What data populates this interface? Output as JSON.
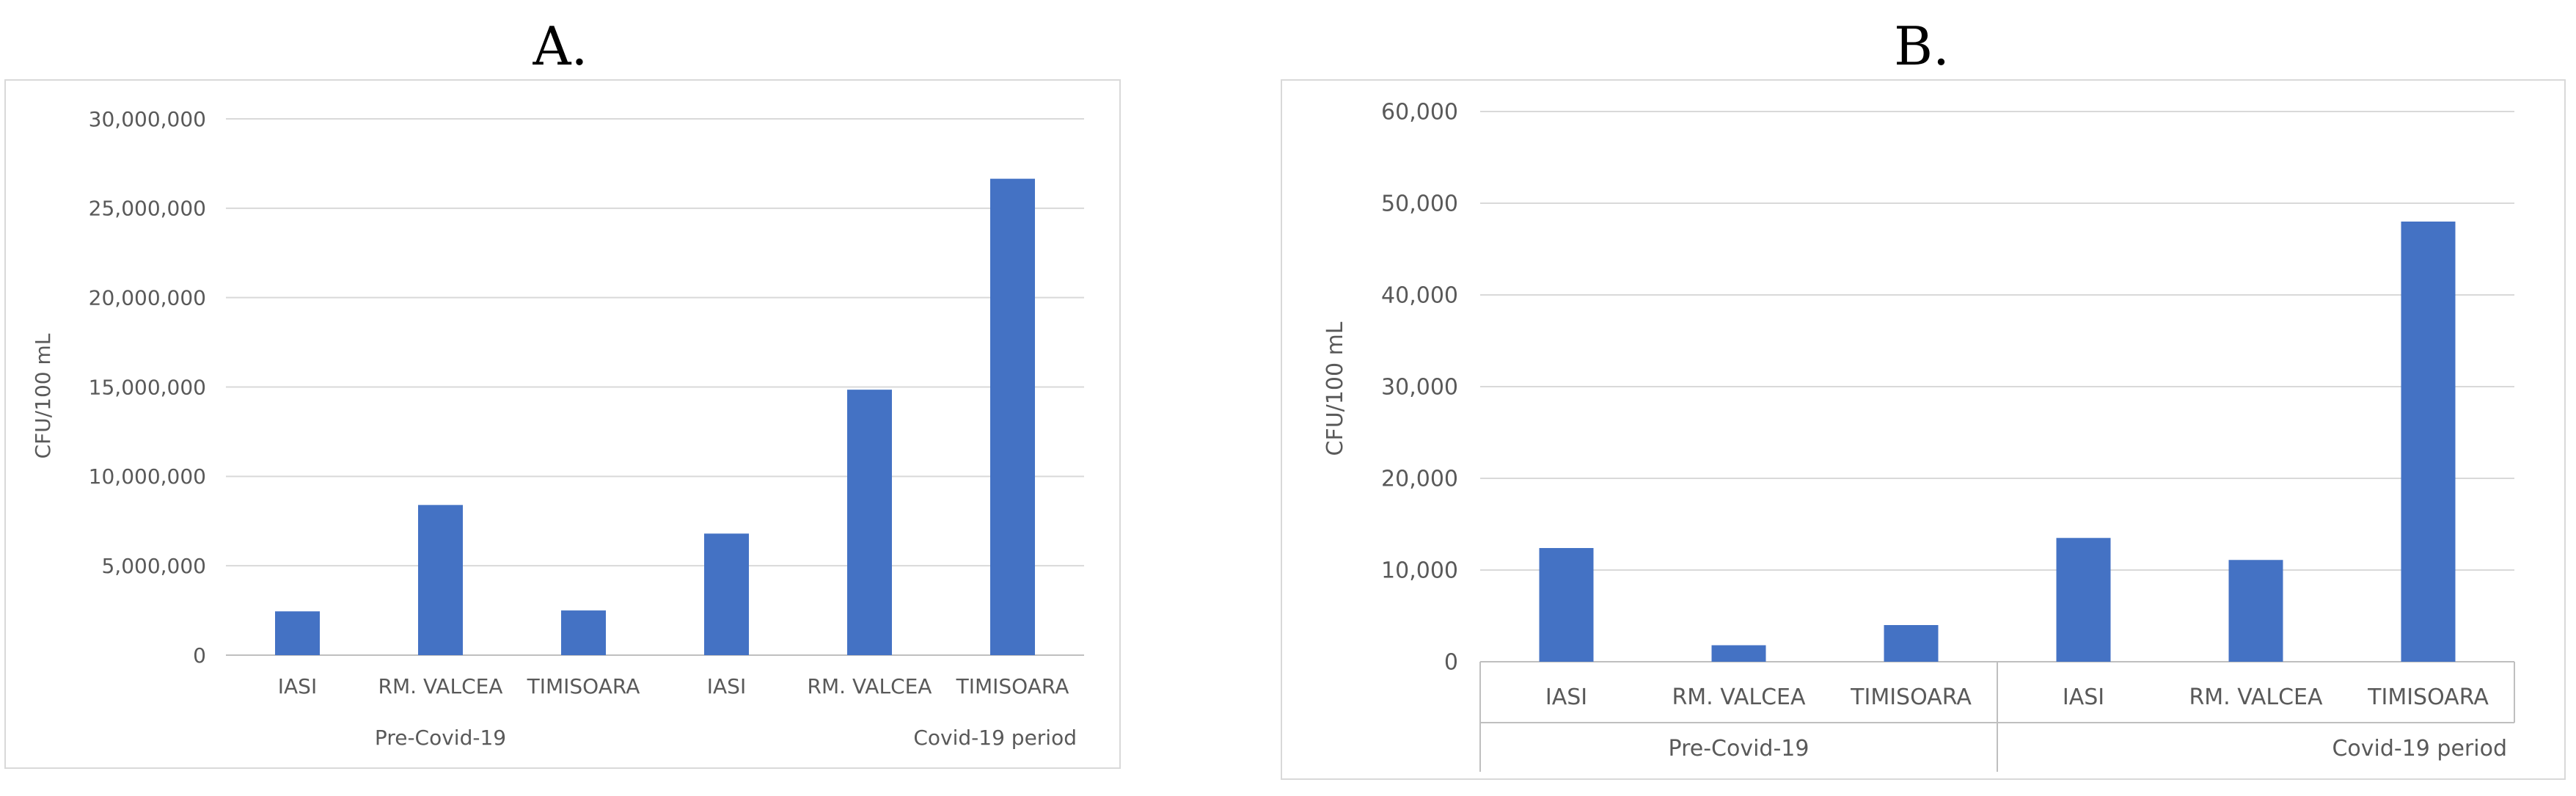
{
  "panels": {
    "a": {
      "label": "A."
    },
    "b": {
      "label": "B."
    }
  },
  "colors": {
    "bar": "#4472c4",
    "grid": "#d9d9d9",
    "axis": "#bfbfbf",
    "text": "#595959"
  },
  "chart_data": [
    {
      "type": "bar",
      "panel": "A.",
      "title": "",
      "ylabel": "CFU/100 mL",
      "xlabel": "",
      "ylim": [
        0,
        30000000
      ],
      "yticks": [
        0,
        5000000,
        10000000,
        15000000,
        20000000,
        25000000,
        30000000
      ],
      "ytick_labels": [
        "0",
        "5,000,000",
        "10,000,000",
        "15,000,000",
        "20,000,000",
        "25,000,000",
        "30,000,000"
      ],
      "grid": true,
      "categories": [
        "IASI",
        "RM. VALCEA",
        "TIMISOARA",
        "IASI",
        "RM. VALCEA",
        "TIMISOARA"
      ],
      "groups": [
        {
          "label": "Pre-Covid-19",
          "count": 3
        },
        {
          "label": "Covid-19 period",
          "count": 3
        }
      ],
      "values": [
        2450000,
        8400000,
        2500000,
        6800000,
        14850000,
        26650000
      ]
    },
    {
      "type": "bar",
      "panel": "B.",
      "title": "",
      "ylabel": "CFU/100 mL",
      "xlabel": "",
      "ylim": [
        0,
        60000
      ],
      "yticks": [
        0,
        10000,
        20000,
        30000,
        40000,
        50000,
        60000
      ],
      "ytick_labels": [
        "0",
        "10,000",
        "20,000",
        "30,000",
        "40,000",
        "50,000",
        "60,000"
      ],
      "grid": true,
      "categories": [
        "IASI",
        "RM. VALCEA",
        "TIMISOARA",
        "IASI",
        "RM. VALCEA",
        "TIMISOARA"
      ],
      "groups": [
        {
          "label": "Pre-Covid-19",
          "count": 3
        },
        {
          "label": "Covid-19 period",
          "count": 3
        }
      ],
      "values": [
        12400,
        1800,
        4000,
        13500,
        11100,
        48000
      ]
    }
  ]
}
